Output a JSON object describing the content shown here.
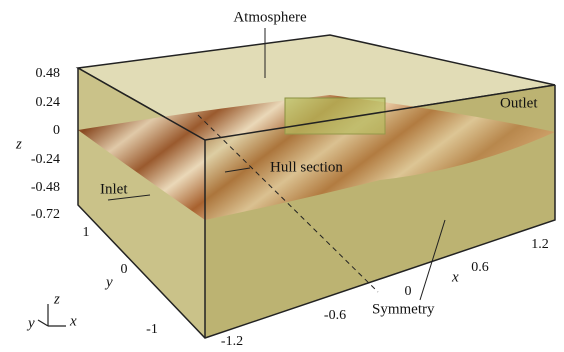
{
  "labels": {
    "atmosphere": "Atmosphere",
    "outlet": "Outlet",
    "hull": "Hull section",
    "inlet": "Inlet",
    "symmetry": "Symmetry"
  },
  "axes": {
    "z": {
      "label": "z",
      "ticks": [
        0.48,
        0.24,
        0,
        -0.24,
        -0.48,
        -0.72
      ]
    },
    "y": {
      "label": "y",
      "ticks": [
        1,
        0,
        -1
      ]
    },
    "x": {
      "label": "x",
      "ticks": [
        -1.2,
        -0.6,
        0,
        0.6,
        1.2
      ]
    }
  },
  "triad": {
    "x": "x",
    "y": "y",
    "z": "z"
  }
}
